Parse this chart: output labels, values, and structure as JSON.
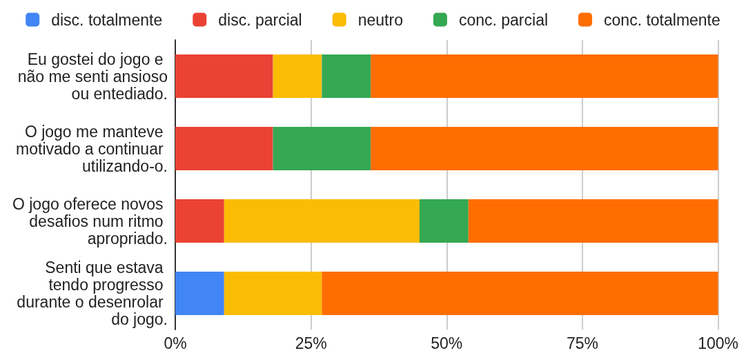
{
  "chart_data": {
    "type": "bar",
    "orientation": "horizontal",
    "stacked": true,
    "categories": [
      "Eu gostei do jogo e não me senti ansioso ou entediado.",
      "O jogo me manteve motivado a continuar utilizando-o.",
      "O jogo oferece novos desafios num ritmo apropriado.",
      "Senti que estava tendo progresso durante o desenrolar do jogo."
    ],
    "series": [
      {
        "name": "disc. totalmente",
        "color": "#4285f4",
        "values": [
          0,
          0,
          0,
          9
        ]
      },
      {
        "name": "disc. parcial",
        "color": "#ea4335",
        "values": [
          18,
          18,
          9,
          0
        ]
      },
      {
        "name": "neutro",
        "color": "#fbbc04",
        "values": [
          9,
          0,
          36,
          18
        ]
      },
      {
        "name": "conc. parcial",
        "color": "#34a853",
        "values": [
          9,
          18,
          9,
          0
        ]
      },
      {
        "name": "conc. totalmente",
        "color": "#ff6d01",
        "values": [
          64,
          64,
          46,
          73
        ]
      }
    ],
    "xlim": [
      0,
      100
    ],
    "xticks": [
      {
        "value": 0,
        "label": "0%"
      },
      {
        "value": 25,
        "label": "25%"
      },
      {
        "value": 50,
        "label": "50%"
      },
      {
        "value": 75,
        "label": "75%"
      },
      {
        "value": 100,
        "label": "100%"
      }
    ],
    "grid": "x",
    "legend": "top"
  }
}
